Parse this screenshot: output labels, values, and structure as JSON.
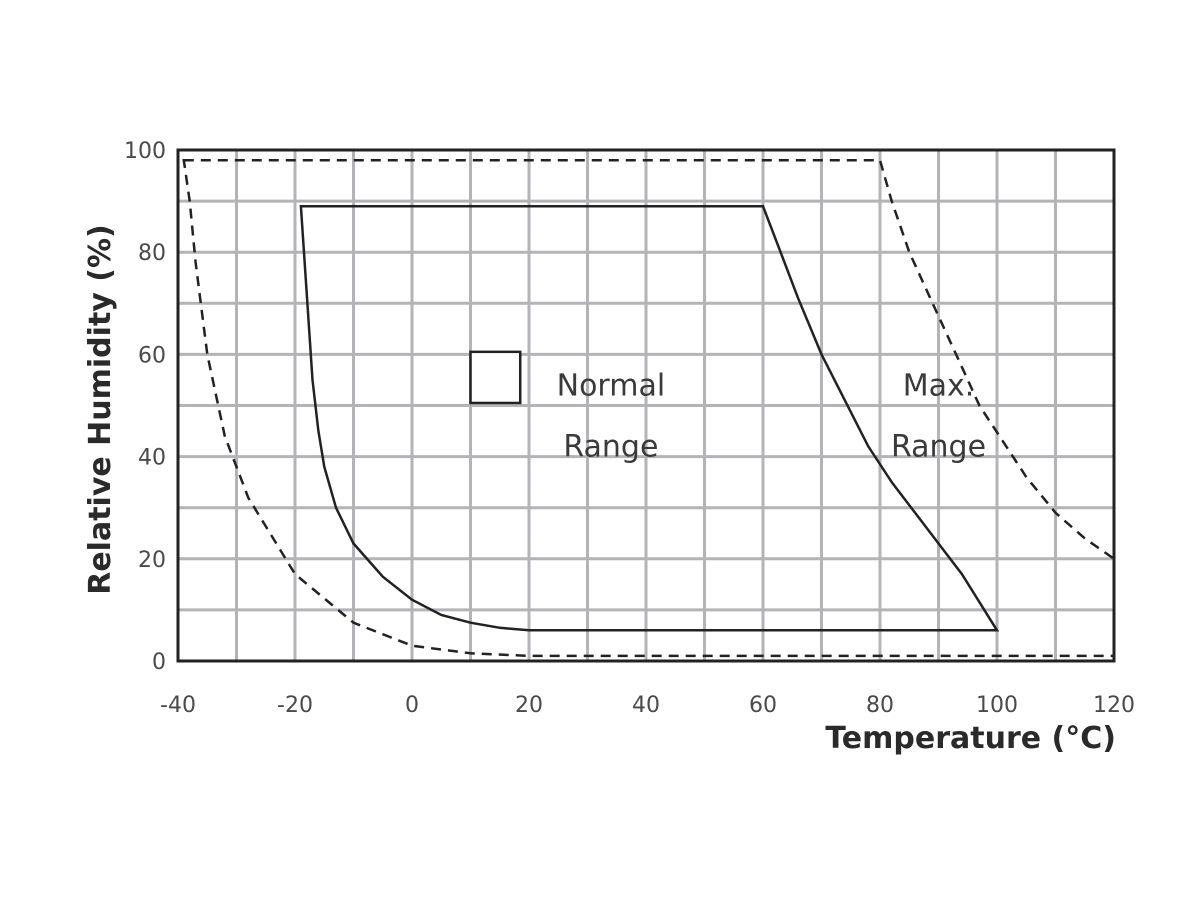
{
  "chart_data": {
    "type": "area",
    "xlabel": "Temperature (°C)",
    "ylabel": "Relative Humidity (%)",
    "xlim": [
      -40,
      120
    ],
    "ylim": [
      0,
      100
    ],
    "x_ticks": [
      -40,
      -20,
      0,
      20,
      40,
      60,
      80,
      100,
      120
    ],
    "y_ticks": [
      0,
      20,
      40,
      60,
      80,
      100
    ],
    "grid": true,
    "grid_step_x": 10,
    "grid_step_y": 10,
    "annotations": [
      {
        "id": "normal",
        "lines": [
          "Normal",
          "Range"
        ],
        "x": 34,
        "y": 52,
        "line2_y": 40
      },
      {
        "id": "max",
        "lines": [
          "Max.",
          "Range"
        ],
        "x": 90,
        "y": 52,
        "line2_y": 40
      }
    ],
    "legend_marker": {
      "x0": 10,
      "x1": 18.5,
      "y0": 50.5,
      "y1": 60.5
    },
    "series": [
      {
        "style": "solid",
        "closed": true,
        "points": [
          [
            -19,
            89
          ],
          [
            60,
            89
          ],
          [
            63,
            80
          ],
          [
            66,
            71
          ],
          [
            70,
            60
          ],
          [
            74,
            51
          ],
          [
            78,
            42
          ],
          [
            82,
            35
          ],
          [
            86,
            29
          ],
          [
            90,
            23
          ],
          [
            94,
            17
          ],
          [
            100,
            6
          ],
          [
            20,
            6
          ],
          [
            15,
            6.5
          ],
          [
            10,
            7.5
          ],
          [
            5,
            9
          ],
          [
            0,
            12
          ],
          [
            -5,
            16.5
          ],
          [
            -10,
            23
          ],
          [
            -13,
            30
          ],
          [
            -15,
            38
          ],
          [
            -16,
            45
          ],
          [
            -17,
            55
          ],
          [
            -18,
            72
          ],
          [
            -19,
            89
          ]
        ]
      },
      {
        "style": "dashed",
        "closed": true,
        "points": [
          [
            -39,
            98
          ],
          [
            80,
            98
          ],
          [
            82,
            90
          ],
          [
            85,
            80
          ],
          [
            89,
            70
          ],
          [
            93,
            60
          ],
          [
            97,
            50
          ],
          [
            101,
            43
          ],
          [
            105,
            36
          ],
          [
            110,
            29
          ],
          [
            115,
            24
          ],
          [
            120,
            20
          ],
          [
            120,
            1
          ],
          [
            20,
            1
          ],
          [
            10,
            1.5
          ],
          [
            0,
            3
          ],
          [
            -10,
            7.5
          ],
          [
            -20,
            17
          ],
          [
            -28,
            32
          ],
          [
            -32,
            44
          ],
          [
            -35,
            60
          ],
          [
            -37,
            78
          ],
          [
            -38,
            90
          ],
          [
            -39,
            98
          ]
        ]
      }
    ]
  }
}
